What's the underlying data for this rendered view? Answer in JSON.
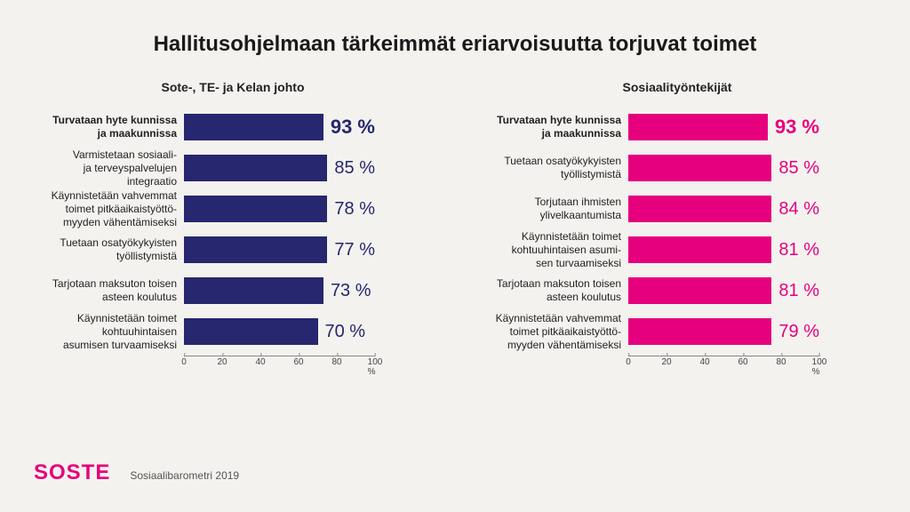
{
  "title": "Hallitusohjelmaan tärkeimmät eriarvoisuutta torjuvat toimet",
  "logo": "SOSTE",
  "logo_color": "#e6007e",
  "footer": "Sosiaalibarometri 2019",
  "axis": {
    "max": 100,
    "ticks": [
      0,
      20,
      40,
      60,
      80,
      100
    ],
    "unit": "%"
  },
  "charts": [
    {
      "subtitle": "Sote-, TE- ja Kelan johto",
      "bar_color": "#26276e",
      "value_color": "#26276e",
      "items": [
        {
          "label": "Turvataan hyte kunnissa\nja maakunnissa",
          "value": 93
        },
        {
          "label": "Varmistetaan sosiaali-\nja terveyspalvelujen\nintegraatio",
          "value": 85
        },
        {
          "label": "Käynnistetään vahvemmat\ntoimet pitkäaikaistyöttö-\nmyyden vähentämiseksi",
          "value": 78
        },
        {
          "label": "Tuetaan osatyökykyisten\ntyöllistymistä",
          "value": 77
        },
        {
          "label": "Tarjotaan maksuton toisen\nasteen koulutus",
          "value": 73
        },
        {
          "label": "Käynnistetään toimet\nkohtuuhintaisen\nasumisen turvaamiseksi",
          "value": 70
        }
      ]
    },
    {
      "subtitle": "Sosiaalityöntekijät",
      "bar_color": "#e6007e",
      "value_color": "#e6007e",
      "items": [
        {
          "label": "Turvataan hyte kunnissa\nja maakunnissa",
          "value": 93
        },
        {
          "label": "Tuetaan osatyökykyisten\ntyöllistymistä",
          "value": 85
        },
        {
          "label": "Torjutaan ihmisten\nylivelkaantumista",
          "value": 84
        },
        {
          "label": "Käynnistetään toimet\nkohtuuhintaisen asumi-\nsen turvaamiseksi",
          "value": 81
        },
        {
          "label": "Tarjotaan maksuton toisen\nasteen koulutus",
          "value": 81
        },
        {
          "label": "Käynnistetään vahvemmat\ntoimet pitkäaikaistyöttö-\nmyyden vähentämiseksi",
          "value": 79
        }
      ]
    }
  ]
}
